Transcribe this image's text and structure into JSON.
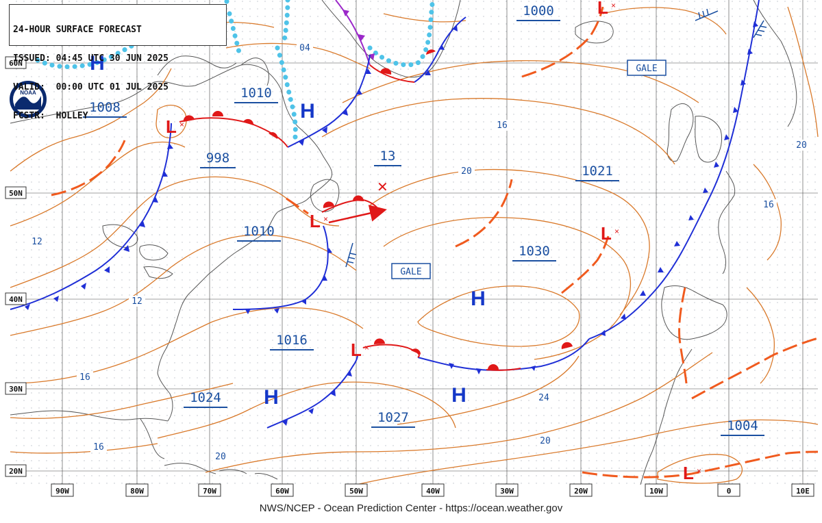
{
  "header": {
    "title": "24-HOUR SURFACE FORECAST",
    "issued": "ISSUED: 04:45 UTC 30 JUN 2025",
    "valid": "VALID:  00:00 UTC 01 JUL 2025",
    "forecaster": "FCSTR:  HOLLEY"
  },
  "logo": {
    "label": "NOAA"
  },
  "footer": {
    "credit": "NWS/NCEP - Ocean Prediction Center - https://ocean.weather.gov"
  },
  "latitude_labels": [
    "60N",
    "50N",
    "40N",
    "30N",
    "20N"
  ],
  "longitude_labels": [
    "90W",
    "80W",
    "70W",
    "60W",
    "50W",
    "40W",
    "30W",
    "20W",
    "10W",
    "0",
    "10E"
  ],
  "pressure_centers": [
    {
      "type": "H",
      "pressure": ""
    },
    {
      "type": "H",
      "pressure": ""
    },
    {
      "type": "H",
      "pressure": ""
    },
    {
      "type": "H",
      "pressure": ""
    },
    {
      "type": "H",
      "pressure": ""
    },
    {
      "type": "L",
      "pressure": ""
    },
    {
      "type": "L",
      "pressure": ""
    },
    {
      "type": "L",
      "pressure": ""
    },
    {
      "type": "L",
      "pressure": ""
    },
    {
      "type": "L",
      "pressure": ""
    },
    {
      "type": "L",
      "pressure": ""
    }
  ],
  "pressure_values": [
    "1000",
    "1010",
    "1008",
    "998",
    "13",
    "1021",
    "1010",
    "1030",
    "1016",
    "1024",
    "1027",
    "1004"
  ],
  "isobar_labels": [
    "04",
    "16",
    "20",
    "12",
    "12",
    "16",
    "16",
    "24",
    "20",
    "20",
    "16",
    "20"
  ],
  "gale_labels": [
    "GALE",
    "GALE"
  ],
  "colors": {
    "isobar": "#d9792a",
    "cold_front": "#1f2fd6",
    "warm_front": "#e01818",
    "trough": "#f05a1e",
    "ice_edge": "#4fc3e8",
    "occluded": "#9b28c9",
    "high": "#1538c8",
    "low": "#e01818",
    "label": "#1a4fa0"
  }
}
